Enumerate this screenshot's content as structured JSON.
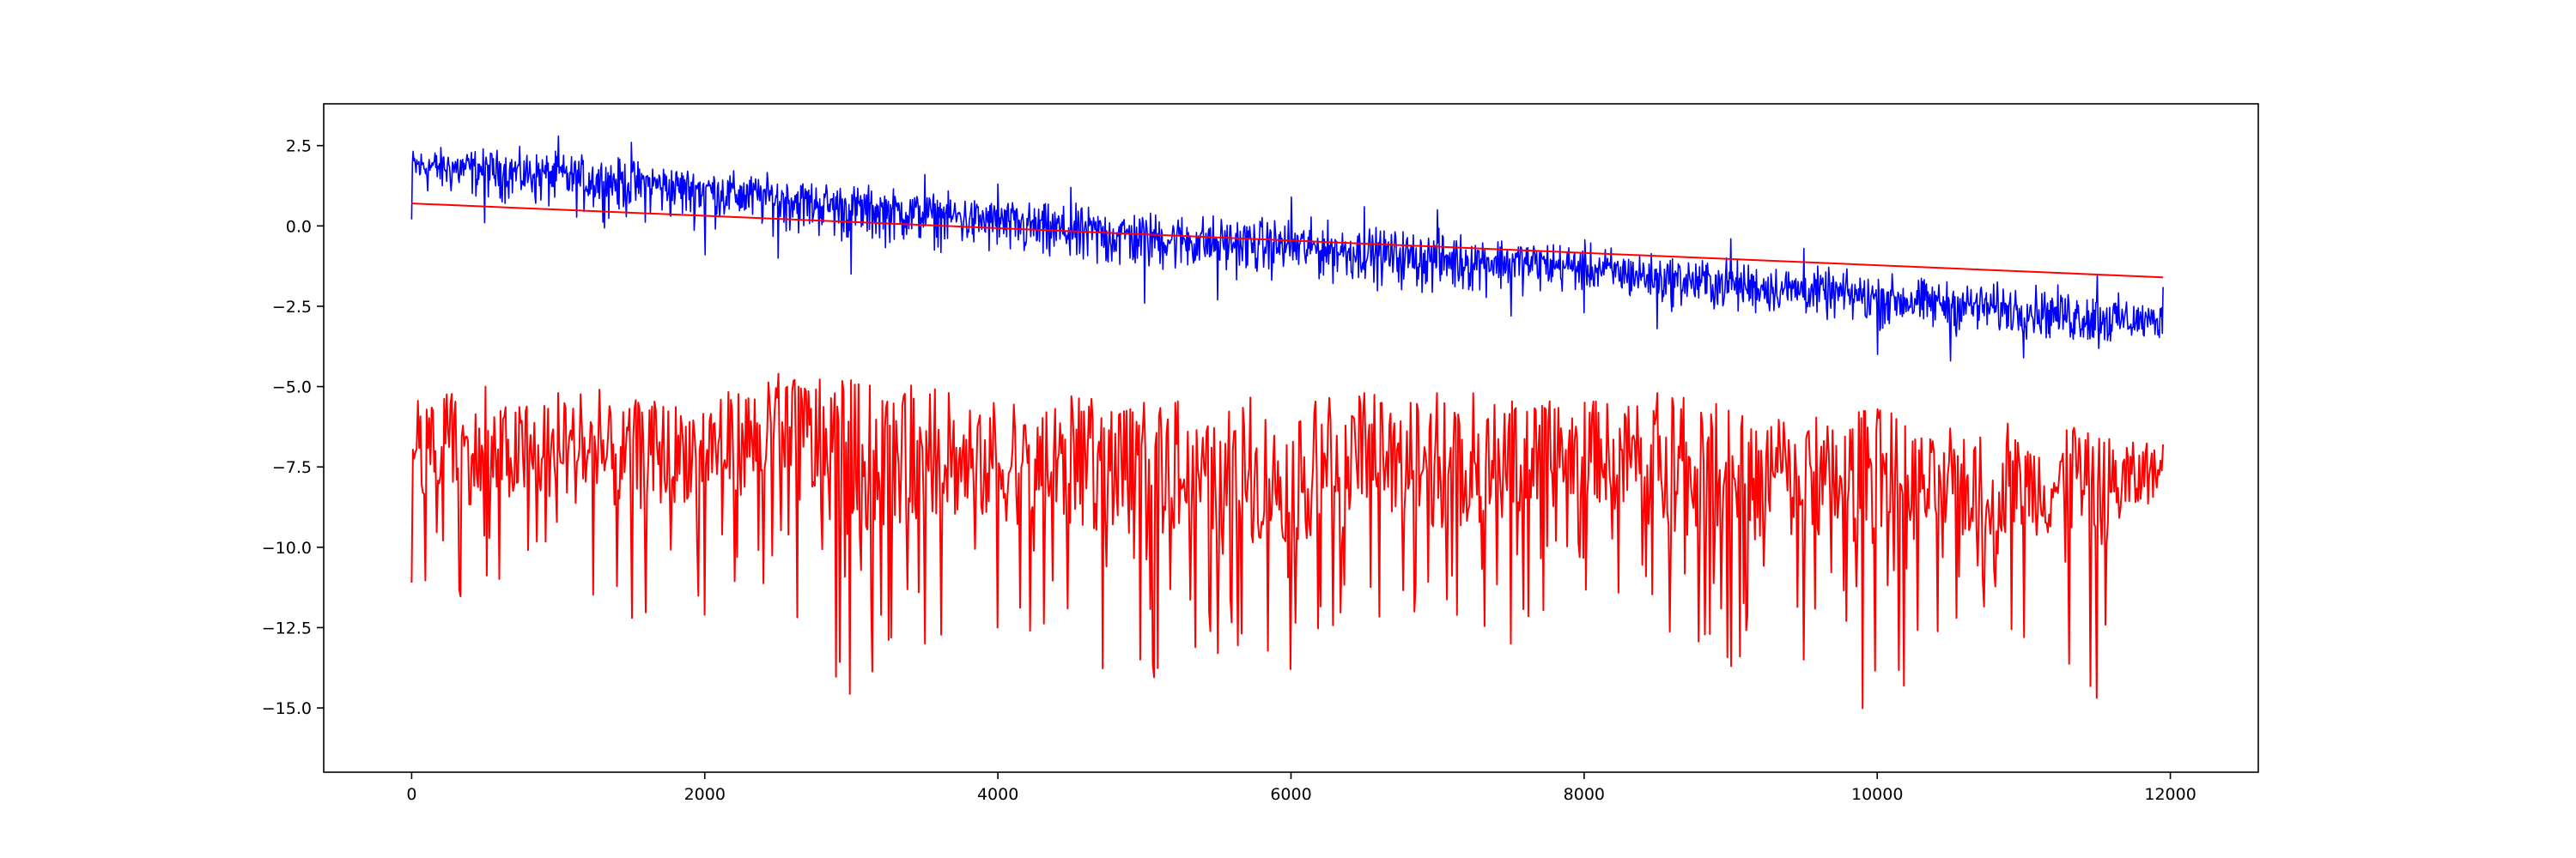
{
  "chart_data": {
    "type": "line",
    "title": "",
    "xlabel": "",
    "ylabel": "",
    "xlim": [
      -600,
      12600
    ],
    "ylim": [
      -17.0,
      3.8
    ],
    "grid": false,
    "legend": "none",
    "x_ticks": [
      {
        "value": 0,
        "label": "0"
      },
      {
        "value": 2000,
        "label": "2000"
      },
      {
        "value": 4000,
        "label": "4000"
      },
      {
        "value": 6000,
        "label": "6000"
      },
      {
        "value": 8000,
        "label": "8000"
      },
      {
        "value": 10000,
        "label": "10000"
      },
      {
        "value": 12000,
        "label": "12000"
      }
    ],
    "y_ticks": [
      {
        "value": 2.5,
        "label": "2.5"
      },
      {
        "value": 0.0,
        "label": "0.0"
      },
      {
        "value": -2.5,
        "label": "−2.5"
      },
      {
        "value": -5.0,
        "label": "−5.0"
      },
      {
        "value": -7.5,
        "label": "−7.5"
      },
      {
        "value": -10.0,
        "label": "−10.0"
      },
      {
        "value": -12.5,
        "label": "−12.5"
      },
      {
        "value": -15.0,
        "label": "−15.0"
      }
    ],
    "series": [
      {
        "kind": "noisy-line",
        "color": "#0000ff",
        "x": [
          0,
          500,
          1000,
          1500,
          2000,
          2500,
          3000,
          3500,
          4000,
          4500,
          5000,
          5500,
          6000,
          6500,
          7000,
          7500,
          8000,
          8500,
          9000,
          9500,
          10000,
          10500,
          11000,
          11500,
          11950
        ],
        "mean": [
          1.9,
          1.8,
          1.6,
          1.4,
          1.2,
          0.9,
          0.6,
          0.4,
          0.2,
          -0.1,
          -0.3,
          -0.5,
          -0.6,
          -0.8,
          -1.0,
          -1.1,
          -1.3,
          -1.6,
          -1.8,
          -2.0,
          -2.2,
          -2.4,
          -2.6,
          -2.8,
          -3.0
        ],
        "min": [
          0.2,
          0.1,
          -0.5,
          -0.8,
          -0.9,
          -1.0,
          -1.5,
          -1.4,
          -2.0,
          -2.7,
          -2.4,
          -2.3,
          -2.5,
          -2.6,
          -3.1,
          -2.8,
          -2.7,
          -3.2,
          -3.5,
          -3.4,
          -4.0,
          -4.2,
          -4.1,
          -4.8,
          -4.0
        ],
        "max": [
          2.9,
          2.9,
          2.8,
          2.6,
          2.2,
          2.1,
          1.9,
          1.6,
          1.3,
          1.2,
          1.1,
          1.0,
          0.9,
          0.6,
          0.5,
          0.3,
          0.1,
          -0.3,
          -0.4,
          -0.7,
          -0.9,
          -1.2,
          -1.2,
          -1.5,
          -1.9
        ]
      },
      {
        "kind": "trend-line",
        "color": "#ff0000",
        "x": [
          0,
          11950
        ],
        "y": [
          0.7,
          -1.6
        ]
      },
      {
        "kind": "noisy-line",
        "color": "#ff0000",
        "x": [
          0,
          500,
          1000,
          1500,
          2000,
          2500,
          3000,
          3500,
          4000,
          4500,
          5000,
          5500,
          6000,
          6500,
          7000,
          7500,
          8000,
          8500,
          9000,
          9500,
          10000,
          10500,
          11000,
          11500,
          11950
        ],
        "mean": [
          -7.0,
          -7.2,
          -7.0,
          -7.3,
          -6.9,
          -6.5,
          -7.3,
          -7.2,
          -7.6,
          -7.6,
          -7.7,
          -8.0,
          -8.0,
          -7.5,
          -7.5,
          -7.5,
          -6.8,
          -7.8,
          -8.0,
          -8.1,
          -7.7,
          -8.4,
          -8.0,
          -8.3,
          -7.6
        ],
        "min": [
          -11.1,
          -12.0,
          -12.2,
          -12.2,
          -12.1,
          -12.5,
          -16.1,
          -13.0,
          -12.5,
          -13.6,
          -14.2,
          -13.3,
          -13.8,
          -12.6,
          -13.8,
          -13.0,
          -12.7,
          -12.8,
          -13.7,
          -13.5,
          -15.5,
          -12.6,
          -12.8,
          -14.7,
          -9.5
        ],
        "max": [
          -5.3,
          -5.0,
          -5.2,
          -5.0,
          -5.1,
          -4.6,
          -4.8,
          -4.9,
          -5.3,
          -5.3,
          -5.5,
          -5.3,
          -5.3,
          -5.2,
          -5.2,
          -5.2,
          -5.5,
          -5.2,
          -5.6,
          -6.0,
          -5.7,
          -6.3,
          -6.1,
          -6.3,
          -6.8
        ]
      }
    ]
  }
}
